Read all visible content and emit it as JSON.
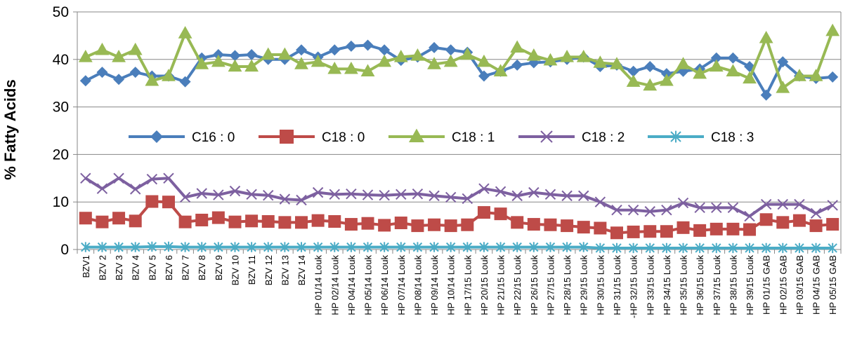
{
  "chart_data": {
    "type": "line",
    "ylabel": "% Fatty Acids",
    "xlabel": "",
    "ylim": [
      0,
      50
    ],
    "yticks": [
      0,
      10,
      20,
      30,
      40,
      50
    ],
    "legend_position": "inside-middle",
    "categories": [
      "BZV1",
      "BZV 2",
      "BZV 3",
      "BZV 4",
      "BZV 5",
      "BZV 6",
      "BZV 7",
      "BZV 8",
      "BZV 9",
      "BZV 10",
      "BZV 11",
      "BZV 12",
      "BZV 13",
      "BZV 14",
      "HP 01/14 Louk",
      "HP 02/14 Louk",
      "HP 04/14 Louk",
      "HP 05/14 Louk",
      "HP 06/14 Louk",
      "HP 07/14 Louk",
      "HP 08/14 Louk",
      "HP 09/14 Louk",
      "HP 10/14 Louk",
      "HP 17/15 Louk",
      "HP 20/15 Louk",
      "HP 21/15 Louk",
      "HP 22/15 Louk",
      "HP 26/15 Louk",
      "HP 27/15 Louk",
      "HP 28/15 Louk",
      "HP 29/15 Louk",
      "HP 30/15 Louk",
      "HP 31/15 Louk",
      "-HP 32/15 Louk",
      "HP 33/15 Louk",
      "HP 34/15 Louk",
      "HP 35/15 Louk",
      "HP 36/15 Louk",
      "HP 37/15 Louk",
      "HP 38/15 Louk",
      "HP 39/15 Louk",
      "HP 01/15 GAB",
      "HP 02/15 GAB",
      "HP 03/15 GAB",
      "HP 04/15 GAB",
      "HP 05/15 GAB"
    ],
    "series": [
      {
        "name": "C16 : 0",
        "color": "#4a7ebb",
        "marker": "diamond",
        "values": [
          35.5,
          37.3,
          35.8,
          37.3,
          36.5,
          36.5,
          35.3,
          40.3,
          41,
          40.8,
          41,
          40,
          40,
          42,
          40.5,
          42,
          42.8,
          43,
          42,
          39.8,
          40.5,
          42.5,
          42,
          41.5,
          36.5,
          37.5,
          38.8,
          39.3,
          39.5,
          40,
          40.5,
          38.5,
          38.8,
          37.5,
          38.5,
          37,
          37.5,
          38,
          40.3,
          40.3,
          38.5,
          32.5,
          39.5,
          36.5,
          36,
          36.3
        ]
      },
      {
        "name": "C18 : 0",
        "color": "#be4b48",
        "marker": "square",
        "values": [
          6.6,
          5.8,
          6.6,
          6.0,
          10.1,
          10.0,
          5.8,
          6.2,
          6.7,
          5.8,
          6.0,
          5.9,
          5.7,
          5.7,
          6.1,
          5.9,
          5.3,
          5.5,
          5.1,
          5.6,
          5.0,
          5.2,
          5.0,
          5.2,
          7.8,
          7.5,
          5.7,
          5.3,
          5.2,
          5.0,
          4.7,
          4.5,
          3.5,
          3.7,
          3.8,
          3.8,
          4.6,
          4.0,
          4.3,
          4.3,
          4.2,
          6.3,
          5.7,
          6.1,
          5.0,
          5.3
        ]
      },
      {
        "name": "C18 : 1",
        "color": "#98b954",
        "marker": "triangle",
        "values": [
          40.5,
          42,
          40.5,
          42,
          35.5,
          36.5,
          45.5,
          39,
          39.5,
          38.5,
          38.5,
          41,
          41,
          39,
          39.5,
          38,
          38,
          37.5,
          39.5,
          40.5,
          40.8,
          39,
          39.5,
          41,
          39.5,
          37.5,
          42.5,
          40.8,
          39.8,
          40.5,
          40.5,
          39.3,
          39,
          35.3,
          34.5,
          35.5,
          39,
          37,
          38.5,
          37.5,
          36,
          44.5,
          34,
          36.5,
          36.5,
          46
        ]
      },
      {
        "name": "C18 : 2",
        "color": "#7d60a0",
        "marker": "x",
        "values": [
          15,
          12.8,
          15,
          12.7,
          14.8,
          15,
          11,
          11.8,
          11.5,
          12.3,
          11.6,
          11.4,
          10.6,
          10.4,
          12,
          11.6,
          11.7,
          11.5,
          11.4,
          11.6,
          11.7,
          11.3,
          11,
          10.7,
          12.8,
          12.2,
          11.3,
          12,
          11.6,
          11.3,
          11.3,
          10,
          8.3,
          8.3,
          8,
          8.3,
          9.8,
          8.8,
          8.8,
          8.8,
          7,
          9.5,
          9.5,
          9.5,
          7.6,
          9.3
        ]
      },
      {
        "name": "C18 : 3",
        "color": "#4bacc6",
        "marker": "asterisk",
        "values": [
          0.5,
          0.5,
          0.5,
          0.5,
          0.6,
          0.6,
          0.5,
          0.5,
          0.5,
          0.5,
          0.5,
          0.5,
          0.5,
          0.5,
          0.5,
          0.5,
          0.5,
          0.5,
          0.5,
          0.5,
          0.5,
          0.5,
          0.5,
          0.5,
          0.5,
          0.5,
          0.5,
          0.5,
          0.5,
          0.5,
          0.5,
          0.3,
          0.3,
          0.3,
          0.3,
          0.3,
          0.3,
          0.3,
          0.3,
          0.3,
          0.3,
          0.3,
          0.3,
          0.3,
          0.3,
          0.3
        ]
      }
    ]
  }
}
